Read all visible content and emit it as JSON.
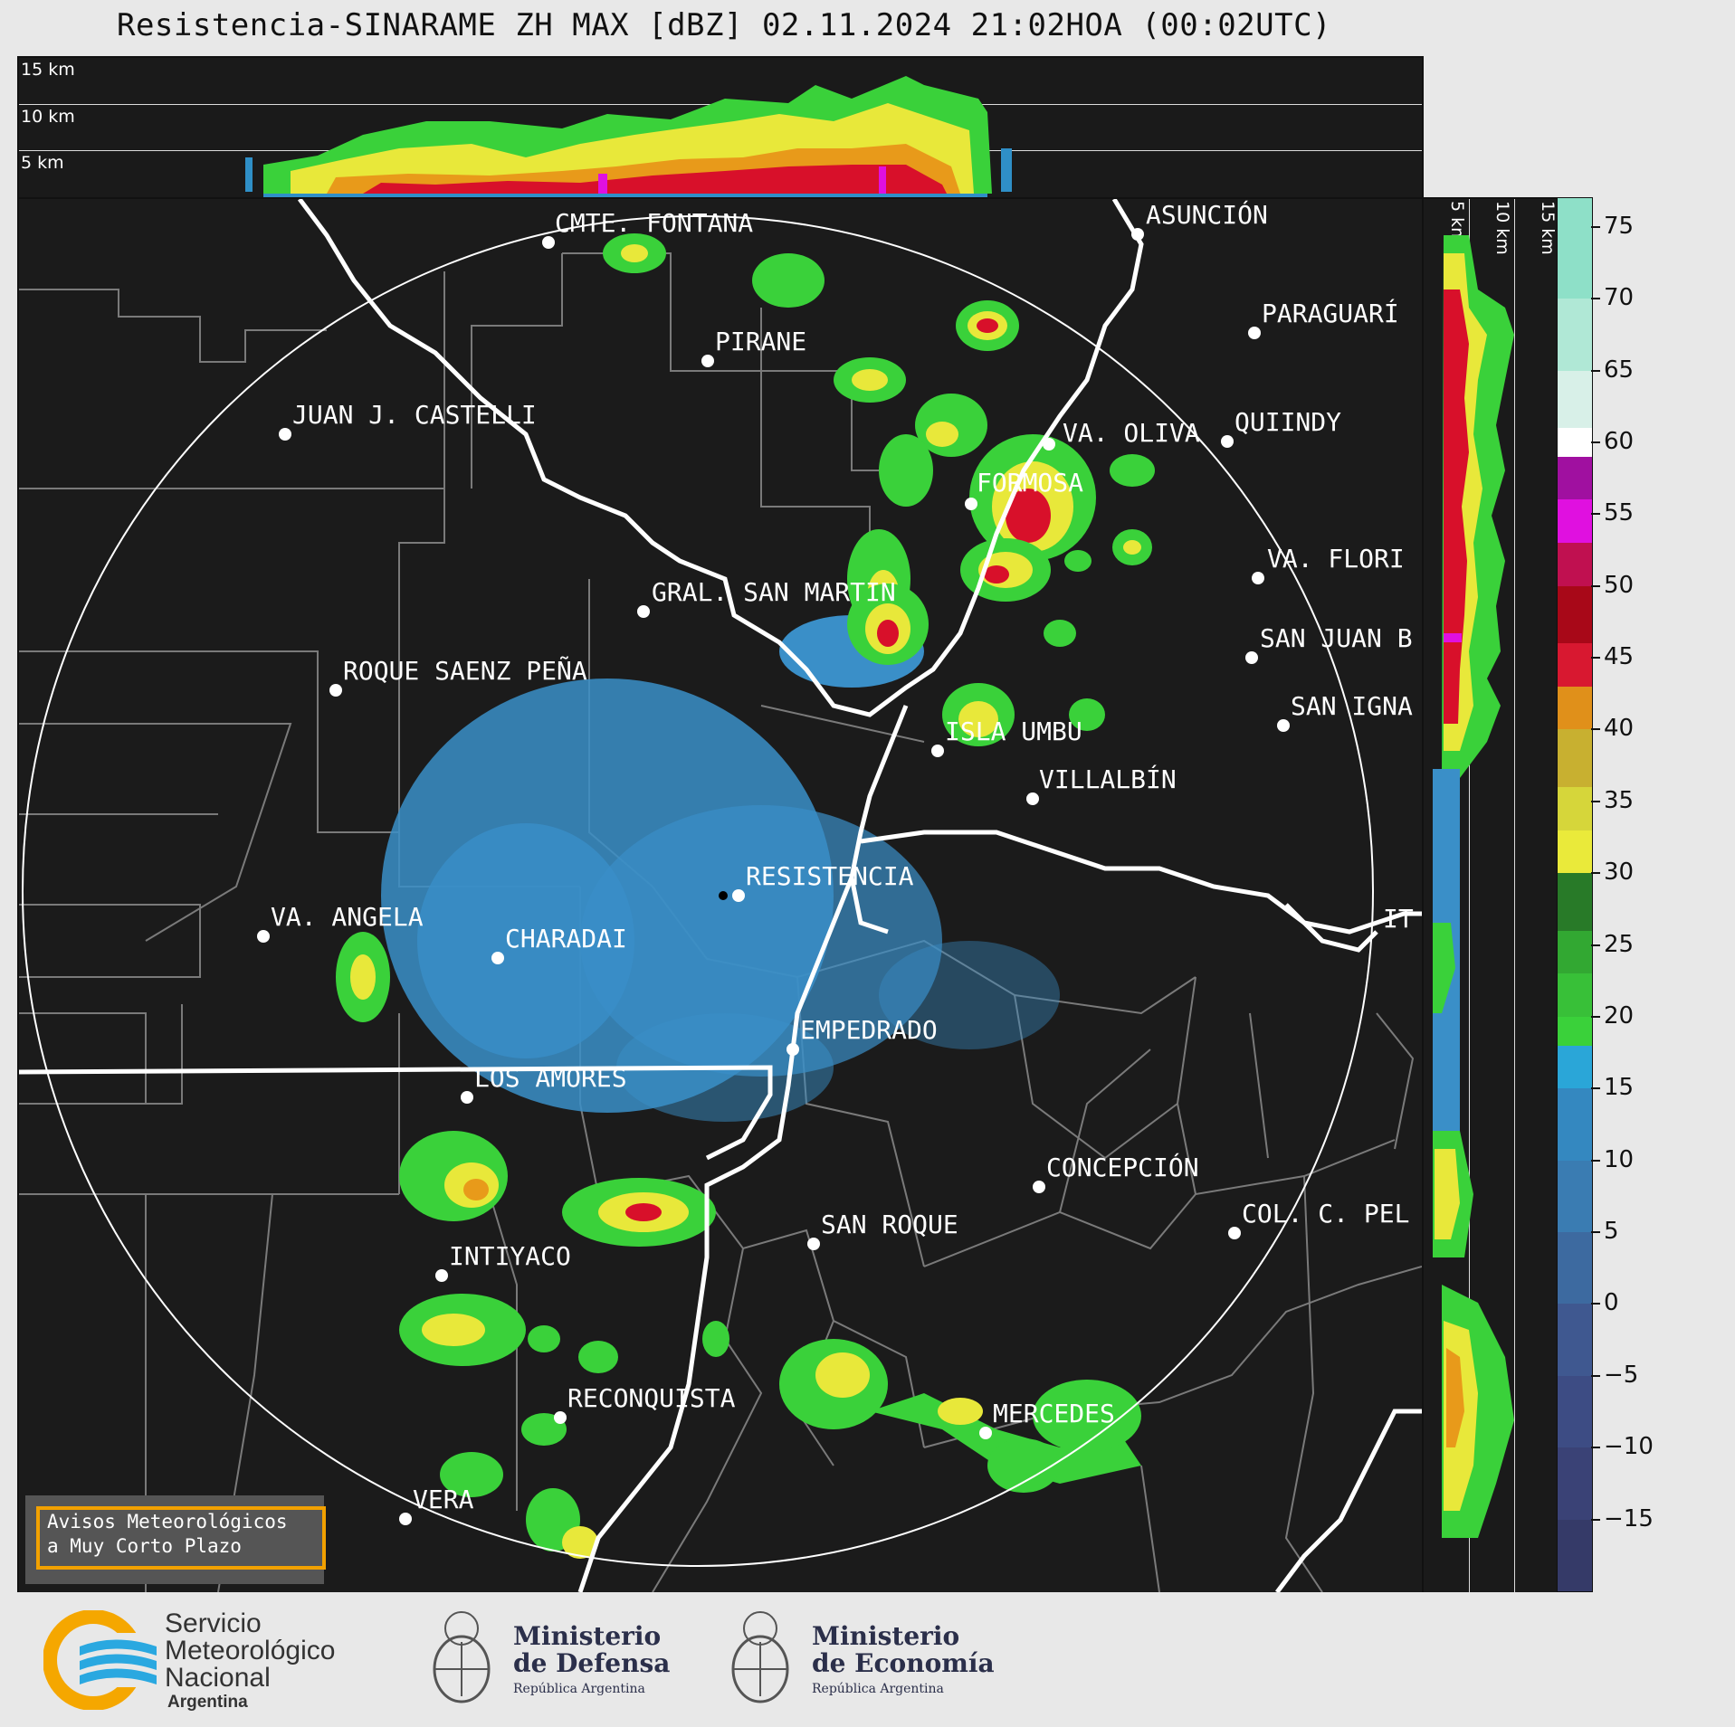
{
  "title": "Resistencia-SINARAME ZH MAX [dBZ] 02.11.2024 21:02HOA (00:02UTC)",
  "profile_top": {
    "labels": [
      "15 km",
      "10 km",
      "5 km"
    ]
  },
  "profile_side": {
    "labels": [
      "5 km",
      "10 km",
      "15 km"
    ]
  },
  "colorbar": {
    "ticks": [
      "75",
      "70",
      "65",
      "60",
      "55",
      "50",
      "45",
      "40",
      "35",
      "30",
      "25",
      "20",
      "15",
      "10",
      "5",
      "0",
      "−5",
      "−10",
      "−15"
    ],
    "range_dbz": [
      -20,
      77
    ],
    "colors": {
      "low": "#3a3f6e",
      "mid_blue": "#2f8fc7",
      "green": "#3ad13a",
      "yellow": "#e8e83a",
      "orange": "#e89a1a",
      "red": "#d8102a",
      "magenta": "#e010e0",
      "white": "#ffffff",
      "teal": "#8ee0c8"
    }
  },
  "cities": [
    {
      "name": "CMTE. FONTANA"
    },
    {
      "name": "ASUNCIÓN"
    },
    {
      "name": "PARAGUARÍ"
    },
    {
      "name": "PIRANE"
    },
    {
      "name": "JUAN J. CASTELLI"
    },
    {
      "name": "VA. OLIVA"
    },
    {
      "name": "QUIINDY"
    },
    {
      "name": "FORMOSA"
    },
    {
      "name": "VA. FLORI"
    },
    {
      "name": "GRAL. SAN MARTIN"
    },
    {
      "name": "SAN JUAN B"
    },
    {
      "name": "ROQUE SAENZ PEÑA"
    },
    {
      "name": "SAN IGNA"
    },
    {
      "name": "ISLA UMBU"
    },
    {
      "name": "VILLALBÍN"
    },
    {
      "name": "RESISTENCIA"
    },
    {
      "name": "VA. ANGELA"
    },
    {
      "name": "CHARADAI"
    },
    {
      "name": "IT"
    },
    {
      "name": "EMPEDRADO"
    },
    {
      "name": "LOS AMORES"
    },
    {
      "name": "CONCEPCIÓN"
    },
    {
      "name": "SAN ROQUE"
    },
    {
      "name": "COL. C. PEL"
    },
    {
      "name": "INTIYACO"
    },
    {
      "name": "RECONQUISTA"
    },
    {
      "name": "MERCEDES"
    },
    {
      "name": "VERA"
    }
  ],
  "warning": {
    "line1": "Avisos Meteorológicos",
    "line2": "a Muy Corto Plazo"
  },
  "footer": {
    "smn": {
      "line1": "Servicio",
      "line2": "Meteorológico",
      "line3": "Nacional",
      "line4": "Argentina"
    },
    "defensa": {
      "line1": "Ministerio",
      "line2": "de Defensa",
      "line3": "República Argentina"
    },
    "economia": {
      "line1": "Ministerio",
      "line2": "de Economía",
      "line3": "República Argentina"
    }
  }
}
